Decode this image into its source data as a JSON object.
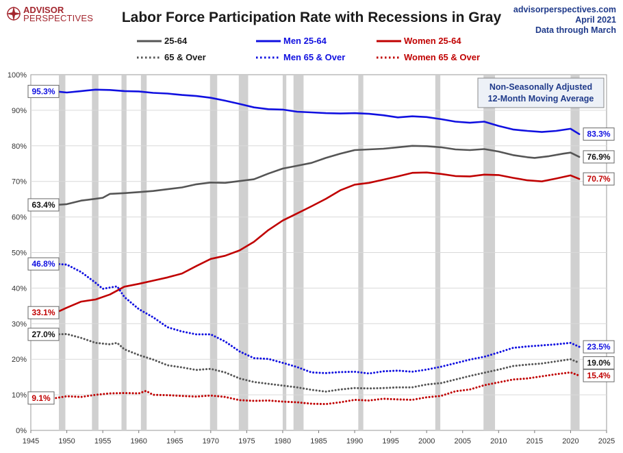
{
  "header": {
    "logo_main": "ADVISOR",
    "logo_sub": "PERSPECTIVES",
    "title": "Labor Force Participation Rate with Recessions in Gray",
    "source_site": "advisorperspectives.com",
    "source_date": "April 2021",
    "source_note": "Data through March"
  },
  "note": {
    "line1": "Non-Seasonally Adjusted",
    "line2": "12-Month Moving Average"
  },
  "colors": {
    "total": "#555555",
    "men": "#1010e0",
    "women": "#c00000",
    "recession": "#d0d0d0",
    "grid": "#d9d9d9"
  },
  "chart_data": {
    "type": "line",
    "title": "Labor Force Participation Rate with Recessions in Gray",
    "xlim": [
      1945,
      2025
    ],
    "ylim": [
      0,
      100
    ],
    "x_ticks": [
      1945,
      1950,
      1955,
      1960,
      1965,
      1970,
      1975,
      1980,
      1985,
      1990,
      1995,
      2000,
      2005,
      2010,
      2015,
      2020,
      2025
    ],
    "y_ticks": [
      "0%",
      "10%",
      "20%",
      "30%",
      "40%",
      "50%",
      "60%",
      "70%",
      "80%",
      "90%",
      "100%"
    ],
    "grid": true,
    "legend_position": "top",
    "recessions": [
      [
        1948.9,
        1949.8
      ],
      [
        1953.5,
        1954.4
      ],
      [
        1957.6,
        1958.3
      ],
      [
        1960.3,
        1961.1
      ],
      [
        1969.9,
        1970.9
      ],
      [
        1973.9,
        1975.2
      ],
      [
        1980.0,
        1980.5
      ],
      [
        1981.5,
        1982.9
      ],
      [
        1990.5,
        1991.2
      ],
      [
        2001.2,
        2001.9
      ],
      [
        2007.9,
        2009.5
      ],
      [
        2020.0,
        2021.25
      ]
    ],
    "series": [
      {
        "name": "25-64",
        "color": "#555555",
        "style": "solid",
        "start_label": "63.4%",
        "end_label": "76.9%",
        "points": [
          [
            1948.5,
            63.4
          ],
          [
            1950,
            63.6
          ],
          [
            1952,
            64.6
          ],
          [
            1954,
            65.1
          ],
          [
            1955,
            65.4
          ],
          [
            1956,
            66.5
          ],
          [
            1958,
            66.7
          ],
          [
            1960,
            67.0
          ],
          [
            1962,
            67.3
          ],
          [
            1964,
            67.8
          ],
          [
            1966,
            68.3
          ],
          [
            1968,
            69.2
          ],
          [
            1970,
            69.7
          ],
          [
            1972,
            69.6
          ],
          [
            1974,
            70.1
          ],
          [
            1976,
            70.6
          ],
          [
            1978,
            72.2
          ],
          [
            1980,
            73.6
          ],
          [
            1982,
            74.4
          ],
          [
            1984,
            75.2
          ],
          [
            1986,
            76.6
          ],
          [
            1988,
            77.8
          ],
          [
            1990,
            78.8
          ],
          [
            1992,
            79.0
          ],
          [
            1994,
            79.2
          ],
          [
            1996,
            79.6
          ],
          [
            1998,
            80.0
          ],
          [
            2000,
            79.9
          ],
          [
            2002,
            79.6
          ],
          [
            2004,
            79.0
          ],
          [
            2006,
            78.8
          ],
          [
            2008,
            79.1
          ],
          [
            2010,
            78.4
          ],
          [
            2012,
            77.4
          ],
          [
            2014,
            76.8
          ],
          [
            2015,
            76.6
          ],
          [
            2017,
            77.1
          ],
          [
            2019,
            77.8
          ],
          [
            2020,
            78.1
          ],
          [
            2021.2,
            76.9
          ]
        ]
      },
      {
        "name": "Men 25-64",
        "color": "#1010e0",
        "style": "solid",
        "start_label": "95.3%",
        "end_label": "83.3%",
        "points": [
          [
            1948.5,
            95.3
          ],
          [
            1950,
            95.0
          ],
          [
            1952,
            95.4
          ],
          [
            1954,
            95.8
          ],
          [
            1956,
            95.7
          ],
          [
            1958,
            95.4
          ],
          [
            1960,
            95.3
          ],
          [
            1962,
            94.9
          ],
          [
            1964,
            94.7
          ],
          [
            1966,
            94.3
          ],
          [
            1968,
            94.0
          ],
          [
            1970,
            93.5
          ],
          [
            1972,
            92.7
          ],
          [
            1974,
            91.8
          ],
          [
            1976,
            90.8
          ],
          [
            1978,
            90.3
          ],
          [
            1980,
            90.2
          ],
          [
            1982,
            89.6
          ],
          [
            1984,
            89.4
          ],
          [
            1986,
            89.2
          ],
          [
            1988,
            89.1
          ],
          [
            1990,
            89.2
          ],
          [
            1992,
            89.0
          ],
          [
            1994,
            88.6
          ],
          [
            1996,
            88.0
          ],
          [
            1998,
            88.3
          ],
          [
            2000,
            88.1
          ],
          [
            2002,
            87.5
          ],
          [
            2004,
            86.8
          ],
          [
            2006,
            86.5
          ],
          [
            2008,
            86.8
          ],
          [
            2010,
            85.6
          ],
          [
            2012,
            84.6
          ],
          [
            2014,
            84.2
          ],
          [
            2016,
            83.9
          ],
          [
            2018,
            84.2
          ],
          [
            2020,
            84.8
          ],
          [
            2021.2,
            83.3
          ]
        ]
      },
      {
        "name": "Women 25-64",
        "color": "#c00000",
        "style": "solid",
        "start_label": "33.1%",
        "end_label": "70.7%",
        "points": [
          [
            1948.5,
            33.1
          ],
          [
            1950,
            34.5
          ],
          [
            1952,
            36.2
          ],
          [
            1954,
            36.8
          ],
          [
            1956,
            38.2
          ],
          [
            1958,
            40.4
          ],
          [
            1960,
            41.2
          ],
          [
            1962,
            42.1
          ],
          [
            1964,
            43.0
          ],
          [
            1966,
            44.1
          ],
          [
            1968,
            46.2
          ],
          [
            1970,
            48.2
          ],
          [
            1972,
            49.1
          ],
          [
            1974,
            50.6
          ],
          [
            1976,
            53.0
          ],
          [
            1978,
            56.3
          ],
          [
            1980,
            59.0
          ],
          [
            1982,
            61.0
          ],
          [
            1984,
            63.0
          ],
          [
            1986,
            65.1
          ],
          [
            1988,
            67.5
          ],
          [
            1990,
            69.1
          ],
          [
            1992,
            69.6
          ],
          [
            1994,
            70.5
          ],
          [
            1996,
            71.4
          ],
          [
            1998,
            72.4
          ],
          [
            2000,
            72.5
          ],
          [
            2002,
            72.1
          ],
          [
            2004,
            71.5
          ],
          [
            2006,
            71.4
          ],
          [
            2008,
            71.9
          ],
          [
            2010,
            71.8
          ],
          [
            2012,
            71.0
          ],
          [
            2014,
            70.3
          ],
          [
            2016,
            70.0
          ],
          [
            2018,
            70.8
          ],
          [
            2020,
            71.7
          ],
          [
            2021.2,
            70.7
          ]
        ]
      },
      {
        "name": "65 & Over",
        "color": "#555555",
        "style": "dotted",
        "start_label": "27.0%",
        "end_label": "19.0%",
        "points": [
          [
            1948.5,
            27.0
          ],
          [
            1950,
            27.1
          ],
          [
            1952,
            26.0
          ],
          [
            1954,
            24.6
          ],
          [
            1956,
            24.2
          ],
          [
            1957,
            24.6
          ],
          [
            1958,
            22.8
          ],
          [
            1960,
            21.2
          ],
          [
            1962,
            19.9
          ],
          [
            1964,
            18.3
          ],
          [
            1966,
            17.7
          ],
          [
            1968,
            17.0
          ],
          [
            1970,
            17.3
          ],
          [
            1972,
            16.3
          ],
          [
            1974,
            14.6
          ],
          [
            1976,
            13.6
          ],
          [
            1978,
            13.1
          ],
          [
            1980,
            12.6
          ],
          [
            1982,
            12.1
          ],
          [
            1984,
            11.4
          ],
          [
            1986,
            10.9
          ],
          [
            1988,
            11.5
          ],
          [
            1990,
            11.9
          ],
          [
            1992,
            11.8
          ],
          [
            1994,
            11.9
          ],
          [
            1996,
            12.1
          ],
          [
            1998,
            12.1
          ],
          [
            2000,
            12.9
          ],
          [
            2002,
            13.3
          ],
          [
            2004,
            14.3
          ],
          [
            2006,
            15.3
          ],
          [
            2008,
            16.2
          ],
          [
            2010,
            17.1
          ],
          [
            2012,
            18.1
          ],
          [
            2014,
            18.5
          ],
          [
            2016,
            18.8
          ],
          [
            2018,
            19.4
          ],
          [
            2020,
            20.0
          ],
          [
            2021.2,
            19.0
          ]
        ]
      },
      {
        "name": "Men 65 & Over",
        "color": "#1010e0",
        "style": "dotted",
        "start_label": "46.8%",
        "end_label": "23.5%",
        "points": [
          [
            1948.5,
            46.8
          ],
          [
            1950,
            46.6
          ],
          [
            1952,
            44.5
          ],
          [
            1954,
            41.5
          ],
          [
            1955,
            39.8
          ],
          [
            1957,
            40.5
          ],
          [
            1958,
            37.5
          ],
          [
            1960,
            34.1
          ],
          [
            1962,
            31.8
          ],
          [
            1964,
            29.0
          ],
          [
            1966,
            27.8
          ],
          [
            1968,
            27.0
          ],
          [
            1970,
            27.0
          ],
          [
            1972,
            25.0
          ],
          [
            1974,
            22.2
          ],
          [
            1976,
            20.3
          ],
          [
            1978,
            20.1
          ],
          [
            1980,
            19.0
          ],
          [
            1982,
            17.8
          ],
          [
            1984,
            16.3
          ],
          [
            1986,
            16.1
          ],
          [
            1988,
            16.4
          ],
          [
            1990,
            16.5
          ],
          [
            1992,
            16.0
          ],
          [
            1994,
            16.6
          ],
          [
            1996,
            16.8
          ],
          [
            1998,
            16.5
          ],
          [
            2000,
            17.1
          ],
          [
            2002,
            17.9
          ],
          [
            2004,
            18.9
          ],
          [
            2006,
            19.9
          ],
          [
            2008,
            20.7
          ],
          [
            2010,
            21.9
          ],
          [
            2012,
            23.2
          ],
          [
            2014,
            23.6
          ],
          [
            2016,
            23.9
          ],
          [
            2018,
            24.2
          ],
          [
            2020,
            24.6
          ],
          [
            2021.2,
            23.5
          ]
        ]
      },
      {
        "name": "Women 65 & Over",
        "color": "#c00000",
        "style": "dotted",
        "start_label": "9.1%",
        "end_label": "15.4%",
        "points": [
          [
            1948.5,
            9.1
          ],
          [
            1950,
            9.6
          ],
          [
            1952,
            9.4
          ],
          [
            1954,
            10.0
          ],
          [
            1956,
            10.4
          ],
          [
            1958,
            10.5
          ],
          [
            1960,
            10.4
          ],
          [
            1961,
            11.1
          ],
          [
            1962,
            10.0
          ],
          [
            1964,
            9.9
          ],
          [
            1966,
            9.7
          ],
          [
            1968,
            9.5
          ],
          [
            1970,
            9.8
          ],
          [
            1972,
            9.4
          ],
          [
            1974,
            8.5
          ],
          [
            1976,
            8.3
          ],
          [
            1978,
            8.4
          ],
          [
            1980,
            8.1
          ],
          [
            1982,
            7.9
          ],
          [
            1984,
            7.5
          ],
          [
            1986,
            7.4
          ],
          [
            1988,
            7.9
          ],
          [
            1990,
            8.6
          ],
          [
            1992,
            8.4
          ],
          [
            1994,
            8.9
          ],
          [
            1996,
            8.7
          ],
          [
            1998,
            8.6
          ],
          [
            2000,
            9.3
          ],
          [
            2002,
            9.7
          ],
          [
            2004,
            11.0
          ],
          [
            2006,
            11.5
          ],
          [
            2008,
            12.7
          ],
          [
            2010,
            13.5
          ],
          [
            2012,
            14.3
          ],
          [
            2014,
            14.6
          ],
          [
            2016,
            15.2
          ],
          [
            2018,
            15.8
          ],
          [
            2020,
            16.3
          ],
          [
            2021.2,
            15.4
          ]
        ]
      }
    ]
  }
}
